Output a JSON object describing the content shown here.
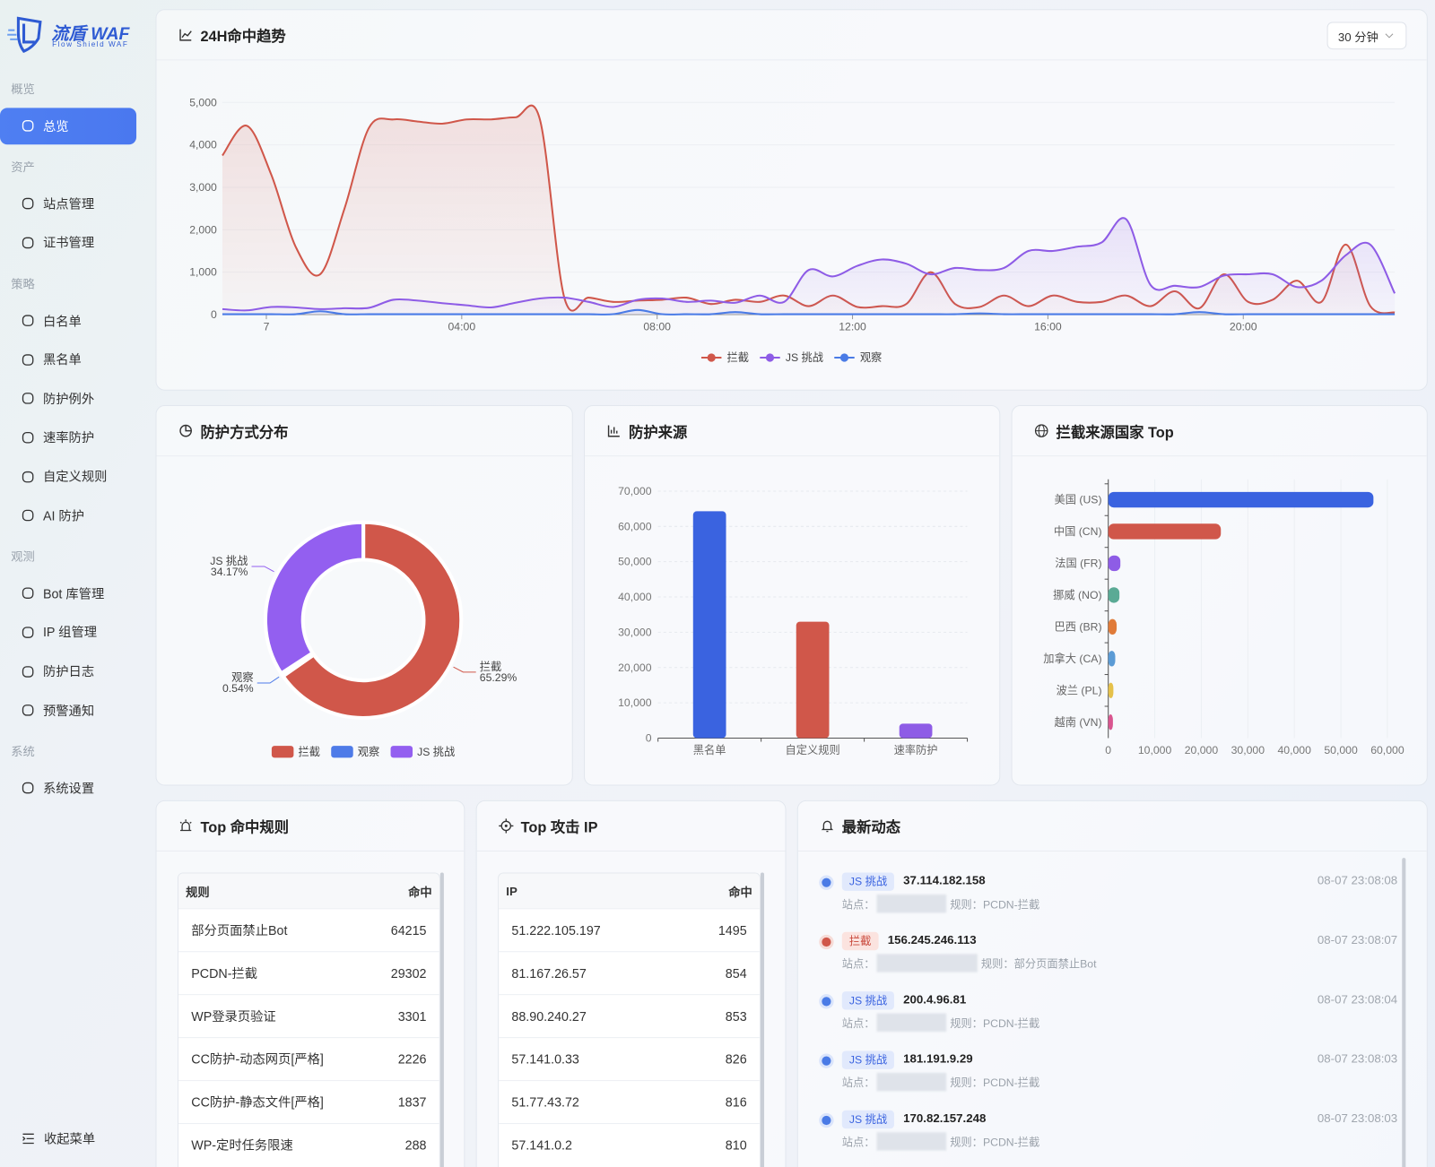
{
  "sidebar": {
    "logo": "流盾 WAF",
    "logo_sub": "Flow Shield WAF",
    "groups": [
      {
        "title": "概览",
        "items": [
          "总览"
        ]
      },
      {
        "title": "资产",
        "items": [
          "站点管理",
          "证书管理"
        ]
      },
      {
        "title": "策略",
        "items": [
          "白名单",
          "黑名单",
          "防护例外",
          "速率防护",
          "自定义规则",
          "AI 防护"
        ]
      },
      {
        "title": "观测",
        "items": [
          "Bot 库管理",
          "IP 组管理",
          "防护日志",
          "预警通知"
        ]
      },
      {
        "title": "系统",
        "items": [
          "系统设置"
        ]
      }
    ],
    "collapse": "收起菜单"
  },
  "chart_data": [
    {
      "type": "line",
      "title": "24H命中趋势",
      "control": "30 分钟",
      "area": true,
      "grid": true,
      "legend": "bottom",
      "x": [
        -0.9,
        -0.4,
        0.1,
        0.6,
        1.1,
        1.6,
        2.1,
        2.6,
        3.1,
        3.6,
        4.1,
        4.6,
        5.1,
        5.6,
        6.1,
        6.6,
        7.1,
        7.6,
        8.1,
        8.6,
        9.1,
        9.6,
        10.1,
        10.6,
        11.1,
        11.6,
        12.1,
        12.6,
        13.1,
        13.6,
        14.1,
        14.6,
        15.1,
        15.6,
        16.1,
        16.6,
        17.1,
        17.6,
        18.1,
        18.6,
        19.1,
        19.6,
        20.1,
        20.6,
        21.1,
        21.6,
        22.1,
        22.6,
        23.1
      ],
      "xlim": [
        -0.9,
        23.1
      ],
      "xticks": [
        {
          "value": 0,
          "label": "7"
        },
        {
          "value": 4,
          "label": "04:00"
        },
        {
          "value": 8,
          "label": "08:00"
        },
        {
          "value": 12,
          "label": "12:00"
        },
        {
          "value": 16,
          "label": "16:00"
        },
        {
          "value": 20,
          "label": "20:00"
        }
      ],
      "ylim": [
        0,
        5000
      ],
      "yticks": [
        0,
        {
          "value": 1000,
          "label": "1,000"
        },
        {
          "value": 2000,
          "label": "2,000"
        },
        {
          "value": 3000,
          "label": "3,000"
        },
        {
          "value": 4000,
          "label": "4,000"
        },
        {
          "value": 5000,
          "label": "5,000"
        }
      ],
      "series": [
        {
          "name": "拦截",
          "color": "#d0574a",
          "values": [
            3750,
            4450,
            3300,
            1600,
            950,
            2500,
            4400,
            4600,
            4550,
            4500,
            4600,
            4600,
            4650,
            4600,
            400,
            400,
            300,
            330,
            350,
            400,
            250,
            350,
            300,
            450,
            200,
            450,
            180,
            200,
            250,
            1000,
            250,
            180,
            450,
            200,
            450,
            300,
            300,
            450,
            200,
            550,
            150,
            950,
            300,
            350,
            800,
            300,
            1650,
            200,
            50
          ]
        },
        {
          "name": "JS 挑战",
          "color": "#8e5ce6",
          "values": [
            130,
            100,
            180,
            170,
            130,
            150,
            160,
            350,
            330,
            270,
            220,
            170,
            280,
            380,
            400,
            300,
            180,
            350,
            380,
            300,
            330,
            280,
            450,
            300,
            1050,
            900,
            1150,
            1300,
            1200,
            950,
            1100,
            1050,
            1100,
            1500,
            1500,
            1600,
            1700,
            2250,
            700,
            680,
            650,
            920,
            950,
            950,
            650,
            800,
            1400,
            1650,
            500
          ]
        },
        {
          "name": "观察",
          "color": "#4a7be6",
          "values": [
            10,
            10,
            10,
            10,
            80,
            10,
            10,
            10,
            10,
            10,
            10,
            10,
            10,
            10,
            10,
            10,
            10,
            110,
            10,
            10,
            10,
            60,
            10,
            10,
            10,
            10,
            10,
            10,
            10,
            10,
            10,
            30,
            10,
            10,
            10,
            10,
            10,
            10,
            10,
            10,
            60,
            10,
            10,
            10,
            10,
            10,
            10,
            10,
            10
          ]
        }
      ]
    },
    {
      "type": "pie",
      "title": "防护方式分布",
      "donut": true,
      "legend": "bottom",
      "categories": [
        "拦截",
        "观察",
        "JS 挑战"
      ],
      "values": [
        65.29,
        0.54,
        34.17
      ],
      "value_labels": [
        "65.29%",
        "0.54%",
        "34.17%"
      ],
      "colors": [
        "#d0574a",
        "#4e7be8",
        "#935ff0"
      ]
    },
    {
      "type": "bar",
      "title": "防护来源",
      "grid": true,
      "categories": [
        "黑名单",
        "自定义规则",
        "速率防护"
      ],
      "values": [
        64300,
        33000,
        4100
      ],
      "colors": [
        "#3a63e0",
        "#d0574a",
        "#8e5ce6"
      ],
      "ylim": [
        0,
        70000
      ],
      "yticks": [
        0,
        {
          "value": 10000,
          "label": "10,000"
        },
        {
          "value": 20000,
          "label": "20,000"
        },
        {
          "value": 30000,
          "label": "30,000"
        },
        {
          "value": 40000,
          "label": "40,000"
        },
        {
          "value": 50000,
          "label": "50,000"
        },
        {
          "value": 60000,
          "label": "60,000"
        },
        {
          "value": 70000,
          "label": "70,000"
        }
      ]
    },
    {
      "type": "bar",
      "horizontal": true,
      "title": "拦截来源国家 Top",
      "grid": true,
      "categories": [
        "美国 (US)",
        "中国 (CN)",
        "法国 (FR)",
        "挪威 (NO)",
        "巴西 (BR)",
        "加拿大 (CA)",
        "波兰 (PL)",
        "越南 (VN)"
      ],
      "values": [
        57000,
        24200,
        2600,
        2400,
        1800,
        1500,
        1100,
        1000
      ],
      "colors": [
        "#3a63e0",
        "#d0574a",
        "#8e5ce6",
        "#5aaa95",
        "#e07b39",
        "#5b9bd5",
        "#e5c14a",
        "#d9558f"
      ],
      "xlim": [
        0,
        60000
      ],
      "xticks": [
        0,
        {
          "value": 10000,
          "label": "10,000"
        },
        {
          "value": 20000,
          "label": "20,000"
        },
        {
          "value": 30000,
          "label": "30,000"
        },
        {
          "value": 40000,
          "label": "40,000"
        },
        {
          "value": 50000,
          "label": "50,000"
        },
        {
          "value": 60000,
          "label": "60,000"
        }
      ]
    }
  ],
  "tables": [
    {
      "title": "Top 命中规则",
      "columns": [
        "规则",
        "命中"
      ],
      "rows": [
        [
          "部分页面禁止Bot",
          64215
        ],
        [
          "PCDN-拦截",
          29302
        ],
        [
          "WP登录页验证",
          3301
        ],
        [
          "CC防护-动态网页[严格]",
          2226
        ],
        [
          "CC防护-静态文件[严格]",
          1837
        ],
        [
          "WP-定时任务限速",
          288
        ]
      ]
    },
    {
      "title": "Top 攻击 IP",
      "columns": [
        "IP",
        "命中"
      ],
      "rows": [
        [
          "51.222.105.197",
          1495
        ],
        [
          "81.167.26.57",
          854
        ],
        [
          "88.90.240.27",
          853
        ],
        [
          "57.141.0.33",
          826
        ],
        [
          "51.77.43.72",
          816
        ],
        [
          "57.141.0.2",
          810
        ]
      ]
    }
  ],
  "activity": {
    "title": "最新动态",
    "site_label": "站点：",
    "rule_label": "规则：",
    "items": [
      {
        "tag": "JS 挑战",
        "ip": "37.114.182.158",
        "time": "08-07 23:08:08",
        "rule": "PCDN-拦截"
      },
      {
        "tag": "拦截",
        "ip": "156.245.246.113",
        "time": "08-07 23:08:07",
        "rule": "部分页面禁止Bot"
      },
      {
        "tag": "JS 挑战",
        "ip": "200.4.96.81",
        "time": "08-07 23:08:04",
        "rule": "PCDN-拦截"
      },
      {
        "tag": "JS 挑战",
        "ip": "181.191.9.29",
        "time": "08-07 23:08:03",
        "rule": "PCDN-拦截"
      },
      {
        "tag": "JS 挑战",
        "ip": "170.82.157.248",
        "time": "08-07 23:08:03",
        "rule": "PCDN-拦截"
      }
    ]
  }
}
